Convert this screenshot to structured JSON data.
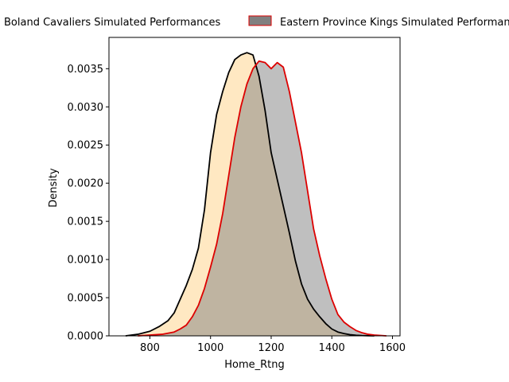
{
  "chart_data": {
    "type": "area",
    "title": "",
    "xlabel": "Home_Rtng",
    "ylabel": "Density",
    "xlim": [
      665,
      1625
    ],
    "ylim": [
      0,
      0.00391
    ],
    "xticks": [
      800,
      1000,
      1200,
      1400,
      1600
    ],
    "xtick_labels": [
      "800",
      "1000",
      "1200",
      "1400",
      "1600"
    ],
    "yticks": [
      0,
      0.0005,
      0.001,
      0.0015,
      0.002,
      0.0025,
      0.003,
      0.0035
    ],
    "ytick_labels": [
      "0.0000",
      "0.0005",
      "0.0010",
      "0.0015",
      "0.0020",
      "0.0025",
      "0.0030",
      "0.0035"
    ],
    "grid": false,
    "legend_position": "top (above plot, two columns)",
    "series": [
      {
        "name": "Boland Cavaliers Simulated Performances",
        "fill_color": "#ffe8c2",
        "line_color": "#000000",
        "x": [
          720,
          760,
          800,
          830,
          860,
          880,
          900,
          920,
          940,
          960,
          980,
          1000,
          1020,
          1040,
          1060,
          1080,
          1100,
          1120,
          1140,
          1160,
          1180,
          1200,
          1220,
          1240,
          1260,
          1280,
          1300,
          1320,
          1340,
          1360,
          1380,
          1400,
          1420,
          1440,
          1460,
          1480,
          1500,
          1520,
          1540
        ],
        "y": [
          0.0,
          2e-05,
          6e-05,
          0.00012,
          0.0002,
          0.0003,
          0.00048,
          0.00066,
          0.00087,
          0.00115,
          0.00165,
          0.0024,
          0.0029,
          0.0032,
          0.00345,
          0.00362,
          0.00368,
          0.00371,
          0.00368,
          0.0034,
          0.00295,
          0.0024,
          0.00205,
          0.0017,
          0.00135,
          0.00098,
          0.00068,
          0.00048,
          0.00035,
          0.00025,
          0.00016,
          9e-05,
          5e-05,
          3e-05,
          1.5e-05,
          8e-06,
          4e-06,
          2e-06,
          0.0
        ]
      },
      {
        "name": "Eastern Province Kings Simulated Performances",
        "fill_color": "#808080",
        "fill_alpha": 0.5,
        "line_color": "#dd0000",
        "x": [
          760,
          800,
          840,
          880,
          900,
          920,
          940,
          960,
          980,
          1000,
          1020,
          1040,
          1060,
          1080,
          1100,
          1120,
          1140,
          1160,
          1180,
          1200,
          1220,
          1240,
          1260,
          1280,
          1300,
          1320,
          1340,
          1360,
          1380,
          1400,
          1420,
          1440,
          1460,
          1480,
          1500,
          1520,
          1540,
          1560,
          1580
        ],
        "y": [
          0.0,
          1e-05,
          2e-05,
          5e-05,
          9e-05,
          0.00014,
          0.00025,
          0.0004,
          0.00062,
          0.0009,
          0.0012,
          0.0016,
          0.0021,
          0.0026,
          0.003,
          0.0033,
          0.0035,
          0.0036,
          0.00358,
          0.0035,
          0.00358,
          0.00352,
          0.0032,
          0.0028,
          0.0024,
          0.0019,
          0.0014,
          0.00105,
          0.00075,
          0.00048,
          0.00028,
          0.00018,
          0.00012,
          7e-05,
          4e-05,
          2e-05,
          1e-05,
          5e-06,
          0.0
        ]
      }
    ]
  }
}
